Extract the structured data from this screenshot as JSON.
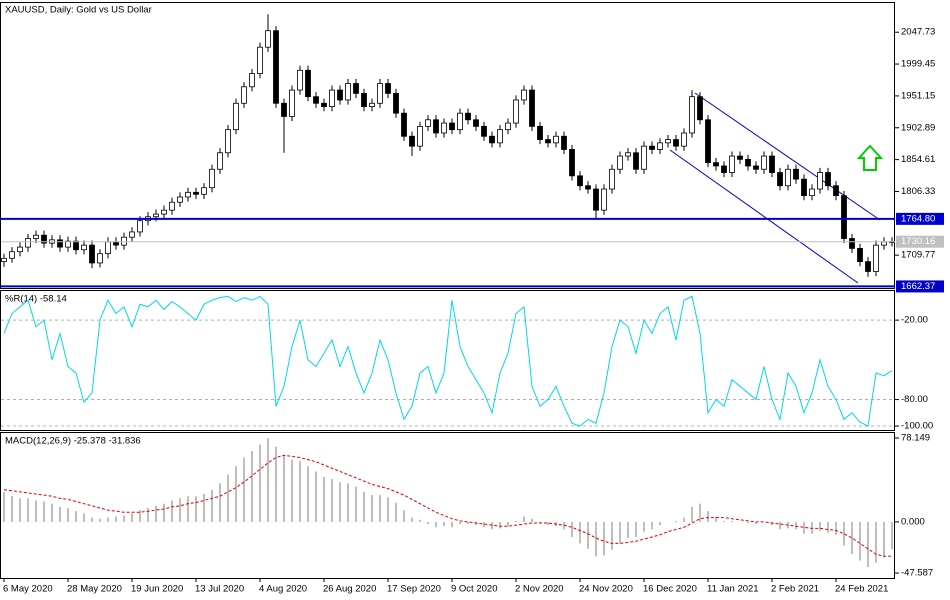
{
  "chart_data": [
    {
      "type": "candlestick",
      "title": "XAUUSD, Daily:  Gold vs US Dollar",
      "categories": [
        "6 May 2020",
        null,
        null,
        null,
        null,
        null,
        null,
        null,
        "28 May 2020",
        null,
        null,
        null,
        null,
        null,
        null,
        null,
        "19 Jun 2020",
        null,
        null,
        null,
        null,
        null,
        null,
        null,
        "13 Jul 2020",
        null,
        null,
        null,
        null,
        null,
        null,
        null,
        "4 Aug 2020",
        null,
        null,
        null,
        null,
        null,
        null,
        null,
        "26 Aug 2020",
        null,
        null,
        null,
        null,
        null,
        null,
        null,
        "17 Sep 2020",
        null,
        null,
        null,
        null,
        null,
        null,
        null,
        "9 Oct 2020",
        null,
        null,
        null,
        null,
        null,
        null,
        null,
        "2 Nov 2020",
        null,
        null,
        null,
        null,
        null,
        null,
        null,
        "24 Nov 2020",
        null,
        null,
        null,
        null,
        null,
        null,
        null,
        "16 Dec 2020",
        null,
        null,
        null,
        null,
        null,
        null,
        null,
        "11 Jan 2021",
        null,
        null,
        null,
        null,
        null,
        null,
        null,
        "2 Feb 2021",
        null,
        null,
        null,
        null,
        null,
        null,
        null,
        "24 Feb 2021",
        null,
        null,
        null,
        null,
        null,
        null,
        null
      ],
      "open": [
        1700,
        1705,
        1715,
        1722,
        1735,
        1740,
        1728,
        1733,
        1722,
        1731,
        1718,
        1725,
        1698,
        1712,
        1730,
        1725,
        1737,
        1745,
        1762,
        1768,
        1772,
        1778,
        1790,
        1798,
        1805,
        1802,
        1812,
        1840,
        1865,
        1900,
        1940,
        1965,
        1985,
        2025,
        2050,
        1940,
        1920,
        1960,
        1990,
        1950,
        1940,
        1935,
        1960,
        1945,
        1970,
        1955,
        1935,
        1940,
        1970,
        1955,
        1925,
        1890,
        1875,
        1905,
        1915,
        1895,
        1910,
        1900,
        1925,
        1915,
        1905,
        1890,
        1880,
        1900,
        1910,
        1945,
        1960,
        1905,
        1885,
        1880,
        1890,
        1870,
        1830,
        1815,
        1810,
        1778,
        1810,
        1840,
        1860,
        1865,
        1840,
        1875,
        1870,
        1880,
        1885,
        1875,
        1895,
        1950,
        1915,
        1850,
        1845,
        1835,
        1860,
        1855,
        1845,
        1840,
        1860,
        1835,
        1815,
        1840,
        1825,
        1800,
        1810,
        1835,
        1815,
        1800,
        1735,
        1720,
        1700,
        1685,
        1725,
        1730
      ],
      "high": [
        1712,
        1722,
        1729,
        1742,
        1747,
        1747,
        1740,
        1740,
        1738,
        1738,
        1732,
        1732,
        1719,
        1737,
        1737,
        1744,
        1752,
        1769,
        1775,
        1779,
        1785,
        1797,
        1805,
        1812,
        1812,
        1819,
        1847,
        1872,
        1907,
        1947,
        1972,
        1992,
        2032,
        2075,
        2057,
        1947,
        1967,
        1997,
        1997,
        1957,
        1947,
        1967,
        1967,
        1977,
        1977,
        1962,
        1947,
        1977,
        1977,
        1962,
        1932,
        1897,
        1912,
        1922,
        1922,
        1917,
        1917,
        1932,
        1932,
        1922,
        1912,
        1897,
        1907,
        1917,
        1952,
        1967,
        1967,
        1912,
        1892,
        1897,
        1897,
        1877,
        1837,
        1822,
        1817,
        1817,
        1847,
        1867,
        1872,
        1872,
        1882,
        1882,
        1887,
        1892,
        1892,
        1902,
        1960,
        1957,
        1922,
        1857,
        1852,
        1867,
        1867,
        1862,
        1852,
        1867,
        1867,
        1842,
        1847,
        1847,
        1832,
        1817,
        1842,
        1842,
        1822,
        1807,
        1742,
        1727,
        1707,
        1732,
        1737,
        1737
      ],
      "low": [
        1692,
        1698,
        1708,
        1715,
        1728,
        1721,
        1721,
        1715,
        1715,
        1711,
        1711,
        1690,
        1691,
        1705,
        1718,
        1718,
        1730,
        1738,
        1755,
        1761,
        1765,
        1771,
        1783,
        1791,
        1795,
        1795,
        1805,
        1833,
        1858,
        1893,
        1933,
        1958,
        1978,
        2018,
        1933,
        1865,
        1913,
        1953,
        1943,
        1933,
        1928,
        1928,
        1938,
        1938,
        1948,
        1928,
        1928,
        1933,
        1948,
        1918,
        1883,
        1860,
        1868,
        1898,
        1888,
        1888,
        1893,
        1893,
        1908,
        1898,
        1883,
        1873,
        1873,
        1893,
        1903,
        1938,
        1898,
        1878,
        1873,
        1873,
        1863,
        1823,
        1808,
        1803,
        1765,
        1771,
        1803,
        1833,
        1853,
        1833,
        1833,
        1863,
        1863,
        1873,
        1868,
        1868,
        1888,
        1908,
        1843,
        1838,
        1828,
        1828,
        1848,
        1838,
        1833,
        1833,
        1828,
        1808,
        1808,
        1818,
        1793,
        1793,
        1803,
        1808,
        1793,
        1728,
        1713,
        1693,
        1677,
        1678,
        1718,
        1723
      ],
      "close": [
        1705,
        1715,
        1722,
        1735,
        1740,
        1728,
        1733,
        1722,
        1731,
        1718,
        1725,
        1698,
        1712,
        1730,
        1725,
        1737,
        1745,
        1762,
        1768,
        1772,
        1778,
        1790,
        1798,
        1805,
        1802,
        1812,
        1840,
        1865,
        1900,
        1940,
        1965,
        1985,
        2025,
        2050,
        1940,
        1920,
        1960,
        1990,
        1950,
        1940,
        1935,
        1960,
        1945,
        1970,
        1955,
        1935,
        1940,
        1970,
        1955,
        1925,
        1890,
        1875,
        1905,
        1915,
        1895,
        1910,
        1900,
        1925,
        1915,
        1905,
        1890,
        1880,
        1900,
        1910,
        1945,
        1960,
        1905,
        1885,
        1880,
        1890,
        1870,
        1830,
        1815,
        1810,
        1778,
        1810,
        1840,
        1860,
        1865,
        1840,
        1875,
        1870,
        1880,
        1885,
        1875,
        1895,
        1950,
        1915,
        1850,
        1845,
        1835,
        1860,
        1855,
        1845,
        1840,
        1860,
        1835,
        1815,
        1840,
        1825,
        1800,
        1810,
        1835,
        1815,
        1800,
        1735,
        1720,
        1700,
        1685,
        1725,
        1730,
        1730.16
      ],
      "up_color": "#ffffff",
      "down_color": "#000000",
      "ylim": [
        1660,
        2092
      ],
      "yticks": [
        2047.73,
        1999.45,
        1951.15,
        1902.89,
        1854.61,
        1806.33,
        1709.77
      ],
      "hlines": [
        {
          "value": 1764.8,
          "label": "1764.80",
          "color": "#0000cc"
        },
        {
          "value": 1662.37,
          "label": "1662.37",
          "color": "#0000cc"
        },
        {
          "value": 1730.16,
          "label": "1730.16",
          "color": "#c0c0c0"
        }
      ]
    },
    {
      "type": "line",
      "title": "%R(14) -58.14",
      "color": "#00d8e8",
      "values": [
        -30,
        -15,
        -10,
        -5,
        -25,
        -20,
        -50,
        -30,
        -55,
        -60,
        -82,
        -75,
        -20,
        -5,
        -15,
        -10,
        -25,
        -8,
        -10,
        -5,
        -12,
        -6,
        -10,
        -15,
        -20,
        -8,
        -5,
        -3,
        -2,
        -6,
        -3,
        -5,
        -2,
        -8,
        -85,
        -70,
        -40,
        -20,
        -50,
        -55,
        -45,
        -35,
        -55,
        -40,
        -60,
        -75,
        -60,
        -35,
        -50,
        -75,
        -95,
        -85,
        -60,
        -55,
        -75,
        -60,
        -5,
        -40,
        -55,
        -65,
        -75,
        -90,
        -60,
        -45,
        -15,
        -10,
        -70,
        -85,
        -80,
        -70,
        -85,
        -98,
        -100,
        -95,
        -98,
        -75,
        -40,
        -20,
        -25,
        -45,
        -20,
        -30,
        -15,
        -10,
        -35,
        -5,
        -2,
        -30,
        -90,
        -80,
        -85,
        -65,
        -70,
        -75,
        -80,
        -55,
        -80,
        -95,
        -60,
        -70,
        -90,
        -75,
        -50,
        -70,
        -80,
        -95,
        -90,
        -97,
        -100,
        -60,
        -62,
        -58.14
      ],
      "ylim": [
        -103,
        2
      ],
      "yticks": [
        {
          "value": -20,
          "label": "-20.00"
        },
        {
          "value": -80,
          "label": "-80.00"
        },
        {
          "value": -100,
          "label": "-100.00"
        }
      ],
      "grid": true
    },
    {
      "type": "macd",
      "title": "MACD(12,26,9) -25.378 -31.836",
      "series": [
        {
          "style": "histogram",
          "color": "#a8a8a8",
          "values": [
            28,
            24,
            22,
            22,
            20,
            19,
            17,
            14,
            13,
            10,
            8,
            4,
            3,
            4,
            5,
            6,
            8,
            11,
            13,
            15,
            17,
            20,
            22,
            24,
            24,
            26,
            30,
            36,
            44,
            52,
            60,
            66,
            72,
            78,
            70,
            62,
            58,
            57,
            52,
            47,
            42,
            40,
            37,
            36,
            33,
            28,
            25,
            25,
            23,
            18,
            11,
            4,
            2,
            -2,
            -5,
            -4,
            -5,
            -2,
            -2,
            -3,
            -5,
            -7,
            -6,
            -4,
            1,
            5,
            3,
            -1,
            -3,
            -4,
            -7,
            -14,
            -20,
            -25,
            -32,
            -31,
            -26,
            -20,
            -15,
            -14,
            -9,
            -7,
            -3,
            0,
            1,
            4,
            14,
            17,
            10,
            5,
            1,
            1,
            0,
            -1,
            -2,
            0,
            -3,
            -7,
            -6,
            -7,
            -11,
            -11,
            -8,
            -10,
            -12,
            -22,
            -30,
            -36,
            -42,
            -38,
            -33,
            -25.378
          ]
        },
        {
          "style": "dashed-line",
          "color": "#e00000",
          "values": [
            30,
            29,
            28,
            27,
            26,
            25,
            24,
            22,
            21,
            19,
            17,
            15,
            13,
            11,
            10,
            9,
            9,
            9,
            10,
            11,
            12,
            14,
            15,
            17,
            18,
            20,
            22,
            24,
            28,
            32,
            37,
            43,
            49,
            55,
            60,
            62,
            61,
            60,
            58,
            56,
            53,
            50,
            47,
            44,
            41,
            38,
            35,
            33,
            31,
            28,
            25,
            21,
            17,
            13,
            9,
            6,
            3,
            1,
            0,
            -1,
            -2,
            -3,
            -4,
            -4,
            -3,
            -2,
            -1,
            -1,
            -1,
            -2,
            -3,
            -5,
            -8,
            -11,
            -15,
            -18,
            -20,
            -20,
            -19,
            -18,
            -16,
            -14,
            -12,
            -9,
            -7,
            -5,
            -1,
            3,
            4,
            4,
            4,
            3,
            2,
            1,
            0,
            0,
            -1,
            -2,
            -3,
            -4,
            -5,
            -6,
            -6,
            -7,
            -8,
            -11,
            -15,
            -20,
            -25,
            -30,
            -32,
            -31.836
          ]
        }
      ],
      "ylim": [
        -52.2,
        82.8
      ],
      "yticks": [
        78.149,
        {
          "value": 0,
          "label": "0.000"
        },
        -47.587
      ]
    }
  ]
}
